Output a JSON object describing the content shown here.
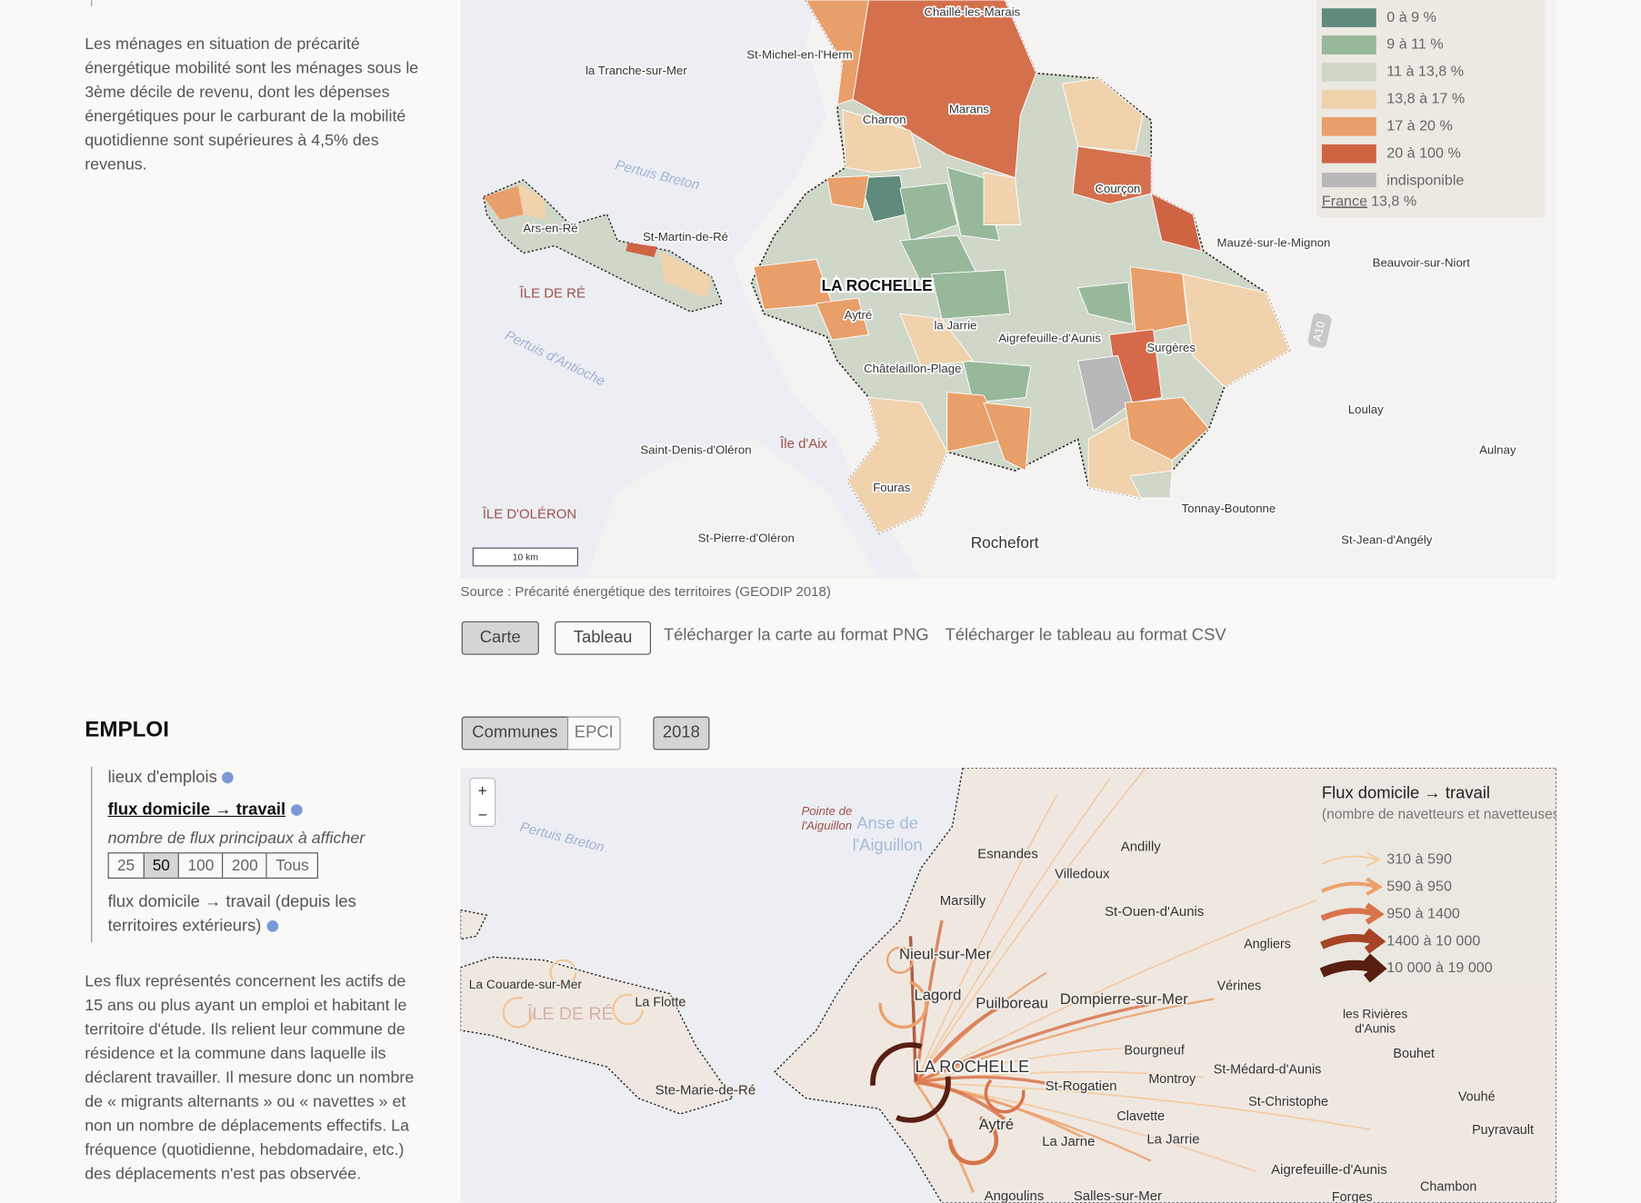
{
  "intro": {
    "text": "Les ménages en situation de précarité énergétique mobilité sont les ménages sous le 3ème décile de revenu, dont les dépenses énergétiques pour le carburant de la mobilité quotidienne sont supérieures à 4,5% des revenus."
  },
  "map1": {
    "places": [
      "Chaillé-les-Marais",
      "St-Michel-en-l'Herm",
      "la Tranche-sur-Mer",
      "Charron",
      "Marans",
      "Courçon",
      "Mauzé-sur-le-Mignon",
      "Beauvoir-sur-Niort",
      "Ars-en-Ré",
      "St-Martin-de-Ré",
      "Aytré",
      "la Jarrie",
      "Aigrefeuille-d'Aunis",
      "Surgères",
      "Châtelaillon-Plage",
      "Loulay",
      "Aulnay",
      "Saint-Denis-d'Oléron",
      "Fouras",
      "Tonnay-Boutonne",
      "St-Pierre-d'Oléron",
      "St-Jean-d'Angély"
    ],
    "main_places": [
      "LA ROCHELLE",
      "Rochefort"
    ],
    "regions": [
      "ÎLE DE RÉ",
      "ÎLE D'OLÉRON",
      "Île d'Aix"
    ],
    "water": [
      "Pertuis Breton",
      "Pertuis d'Antioche"
    ],
    "road": "A10",
    "scale": "10 km",
    "legend": {
      "items": [
        {
          "label": "0 à 9 %",
          "color": "#5f8a7d"
        },
        {
          "label": "9 à 11 %",
          "color": "#98b89b"
        },
        {
          "label": "11 à 13,8 %",
          "color": "#cfd7c9"
        },
        {
          "label": "13,8 à 17 %",
          "color": "#f0d2ad"
        },
        {
          "label": "17 à 20 %",
          "color": "#e89f6a"
        },
        {
          "label": "20 à 100 %",
          "color": "#cf6443"
        },
        {
          "label": "indisponible",
          "color": "#b8b8b8"
        }
      ],
      "reference_name": "France",
      "reference_value": "13,8 %"
    }
  },
  "source": "Source : Précarité énergétique des territoires (GEODIP 2018)",
  "view_buttons": [
    "Carte",
    "Tableau"
  ],
  "downloads": [
    "Télécharger la carte au format PNG",
    "Télécharger le tableau au format CSV"
  ],
  "emploi": {
    "heading": "EMPLOI",
    "level_toggle": [
      "Communes",
      "EPCI"
    ],
    "year": "2018",
    "layers": [
      "lieux d'emplois",
      "flux domicile → travail",
      "flux domicile → travail (depuis les territoires extérieurs)"
    ],
    "filter_label": "nombre de flux principaux à afficher",
    "filter_options": [
      "25",
      "50",
      "100",
      "200",
      "Tous"
    ],
    "text": "Les flux représentés concernent les actifs de 15 ans ou plus ayant un emploi et habitant le territoire d'étude. Ils relient leur commune de résidence et la commune dans laquelle ils déclarent travailler. Il mesure donc un nombre de « migrants alternants » ou « navettes » et non un nombre de déplacements effectifs. La fréquence (quotidienne, hebdomadaire, etc.) des déplacements n'est pas observée."
  },
  "map2": {
    "zoom": [
      "+",
      "−"
    ],
    "places": [
      "Esnandes",
      "Andilly",
      "Villedoux",
      "Marsilly",
      "St-Ouen-d'Aunis",
      "Nieul-sur-Mer",
      "Angliers",
      "Vérines",
      "Lagord",
      "Puilboreau",
      "Dompierre-sur-Mer",
      "La Couarde-sur-Mer",
      "La Flotte",
      "Bourgneuf",
      "Montroy",
      "St-Rogatien",
      "St-Médard-d'Aunis",
      "Ste-Marie-de-Ré",
      "St-Christophe",
      "Vouhé",
      "Clavette",
      "Aytré",
      "Puyravault",
      "La Jarrie",
      "La Jarne",
      "Aigrefeuille-d'Aunis",
      "Chambon",
      "Angoulins",
      "Salles-sur-Mer",
      "Forges",
      "Bouhet"
    ],
    "multiline_places": [
      [
        "les Rivières",
        "d'Aunis"
      ],
      [
        "Pointe de",
        "l'Aiguillon"
      ],
      [
        "Anse de",
        "l'Aiguillon"
      ]
    ],
    "main_place": "LA ROCHELLE",
    "region": "ÎLE DE RÉ",
    "water": "Pertuis Breton",
    "legend": {
      "title": "Flux domicile → travail",
      "subtitle": "(nombre de navetteurs et navetteuses)",
      "items": [
        {
          "label": "310 à 590",
          "color": "#f5c697"
        },
        {
          "label": "590 à 950",
          "color": "#eca06b"
        },
        {
          "label": "950 à 1400",
          "color": "#d8744b"
        },
        {
          "label": "1400 à 10 000",
          "color": "#a54526"
        },
        {
          "label": "10 000 à 19 000",
          "color": "#581e12"
        }
      ]
    }
  }
}
